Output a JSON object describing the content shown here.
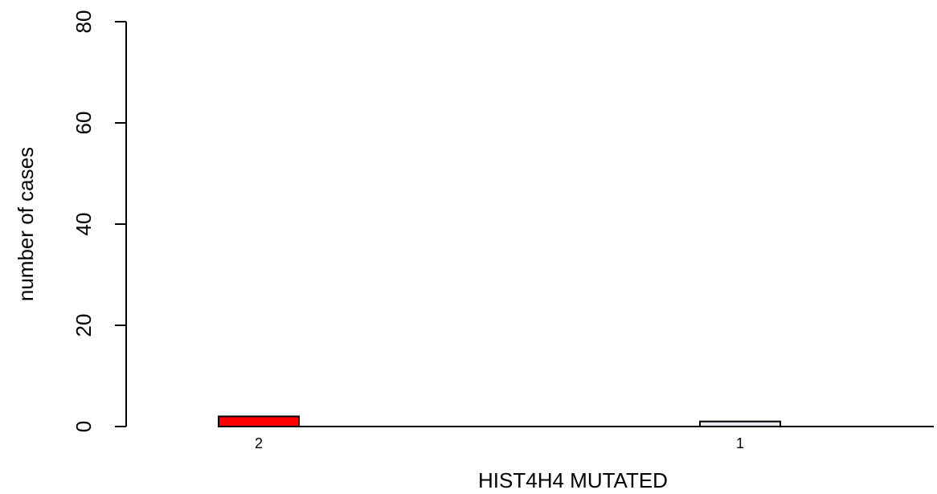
{
  "chart_data": {
    "type": "bar",
    "categories": [
      "2",
      "1"
    ],
    "values": [
      2,
      1
    ],
    "colors": [
      "#ff0000",
      "#e8e8f0"
    ],
    "title": "",
    "xlabel": "HIST4H4 MUTATED",
    "ylabel": "number of cases",
    "ylim": [
      0,
      80
    ],
    "yticks": [
      0,
      20,
      40,
      60,
      80
    ],
    "grid": false
  }
}
